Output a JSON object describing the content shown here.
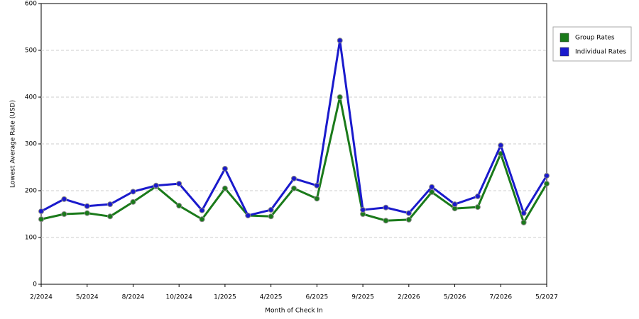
{
  "chart_data": {
    "type": "line",
    "x_label": "Month of Check In",
    "y_label": "Lowest Average Rate (USD)",
    "categories": [
      "2/2024",
      null,
      "5/2024",
      null,
      "8/2024",
      null,
      "10/2024",
      null,
      "1/2025",
      null,
      "4/2025",
      null,
      "6/2025",
      null,
      "9/2025",
      null,
      "2/2026",
      null,
      "5/2026",
      null,
      "7/2026",
      null,
      "5/2027"
    ],
    "series": [
      {
        "name": "Group Rates",
        "color": "#1a7a1a",
        "values": [
          139,
          150,
          152,
          145,
          176,
          209,
          168,
          139,
          205,
          147,
          145,
          205,
          183,
          400,
          150,
          136,
          138,
          197,
          162,
          165,
          279,
          132,
          215
        ]
      },
      {
        "name": "Individual Rates",
        "color": "#1a1acc",
        "values": [
          156,
          182,
          167,
          171,
          198,
          211,
          215,
          158,
          247,
          147,
          159,
          226,
          211,
          521,
          159,
          164,
          152,
          208,
          171,
          188,
          297,
          152,
          232
        ]
      }
    ],
    "ylim": [
      0,
      600
    ],
    "yticks": [
      0,
      100,
      200,
      300,
      400,
      500,
      600
    ],
    "grid": true,
    "legend": "right"
  }
}
